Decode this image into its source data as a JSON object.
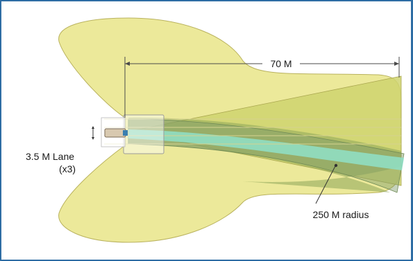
{
  "diagram": {
    "distance_label": "70 M",
    "lane_label": "3.5 M Lane",
    "lane_count_label": "(x3)",
    "radius_label": "250 M radius"
  },
  "colors": {
    "coverage_fill": "#ece99a",
    "coverage_stroke": "#b9b25d",
    "beam_fill": "#c9d36a",
    "curve_fill": "#7aa06a",
    "lane_highlight": "#8fe0c8",
    "frame_border": "#2e6da4",
    "dimension_line": "#4a4a4a"
  }
}
